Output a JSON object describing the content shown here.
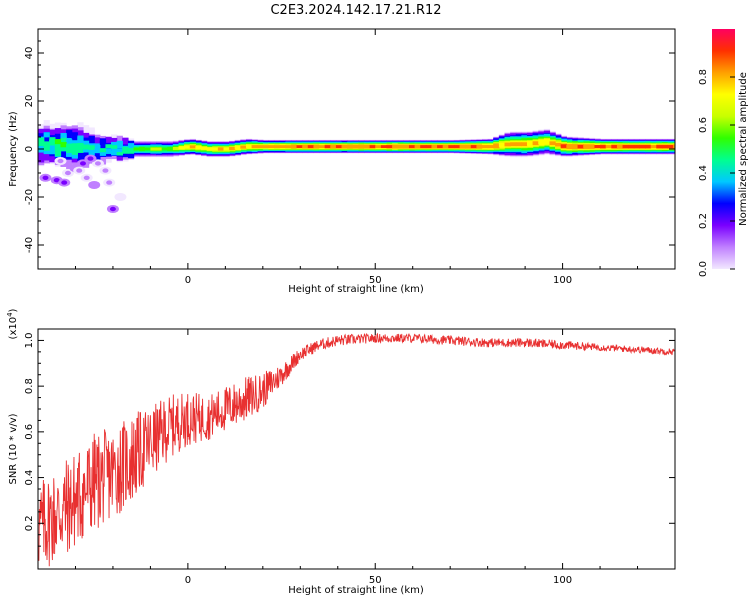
{
  "figure": {
    "title": "C2E3.2024.142.17.21.R12"
  },
  "chart_data": [
    {
      "type": "heatmap",
      "name": "spectrogram",
      "xlabel": "Height of straight line (km)",
      "ylabel": "Frequency (Hz)",
      "xlim": [
        -40,
        130
      ],
      "ylim": [
        -50,
        50
      ],
      "xticks": [
        0,
        50,
        100
      ],
      "yticks": [
        -40,
        -20,
        0,
        20,
        40
      ],
      "colorbar": {
        "label": "Normalized spectral amplitude",
        "range": [
          0,
          1
        ],
        "ticks": [
          "0.0",
          "0.2",
          "0.4",
          "0.6",
          "0.8"
        ],
        "colors": [
          "#f2e8ff",
          "#c080ff",
          "#7a00ff",
          "#0000ff",
          "#00c8ff",
          "#00ff90",
          "#30ff00",
          "#c8ff00",
          "#ffff00",
          "#ffa000",
          "#ff3000",
          "#ff0060"
        ]
      },
      "peak_track": {
        "description_values": "Dominant frequency band near 0 Hz spanning full height range",
        "x": [
          -40,
          -35,
          -30,
          -25,
          -20,
          -15,
          -10,
          -5,
          0,
          5,
          10,
          15,
          20,
          30,
          40,
          50,
          60,
          70,
          80,
          85,
          90,
          95,
          100,
          110,
          120,
          130
        ],
        "freq": [
          2,
          1,
          1,
          0,
          0,
          0,
          0,
          0,
          1,
          0,
          0,
          1,
          1,
          1,
          1,
          1,
          1,
          1,
          1,
          2,
          2,
          3,
          1,
          1,
          1,
          1
        ],
        "amplitude": [
          0.5,
          0.55,
          0.5,
          0.45,
          0.45,
          0.55,
          0.65,
          0.6,
          0.85,
          0.75,
          0.8,
          0.85,
          0.85,
          0.9,
          0.9,
          0.92,
          0.92,
          0.92,
          0.9,
          0.8,
          0.85,
          0.8,
          0.9,
          0.92,
          0.92,
          0.92
        ],
        "halfwidth": [
          8,
          8,
          9,
          6,
          4,
          3,
          3,
          3,
          3,
          3,
          3,
          3,
          2.5,
          2.5,
          2.5,
          2.5,
          2.5,
          2.5,
          3,
          5,
          5,
          5,
          4,
          3,
          3,
          3
        ]
      },
      "scatter_blobs": {
        "x": [
          -38,
          -35,
          -33,
          -32,
          -30,
          -28,
          -27,
          -25,
          -24,
          -22,
          -21,
          -20,
          -18,
          -29,
          -26,
          -34
        ],
        "freq": [
          -12,
          -13,
          -14,
          -10,
          -8,
          -6,
          -12,
          -15,
          -6,
          -9,
          -14,
          -25,
          -20,
          -9,
          -4,
          -5
        ],
        "amplitude": [
          0.25,
          0.2,
          0.22,
          0.15,
          0.18,
          0.2,
          0.15,
          0.18,
          0.12,
          0.15,
          0.15,
          0.2,
          0.08,
          0.15,
          0.2,
          0.1
        ]
      }
    },
    {
      "type": "line",
      "name": "snr",
      "xlabel": "Height of straight line (km)",
      "ylabel": "SNR (10 * v/v)",
      "scale_label": "(x10",
      "scale_exp": "4",
      "scale_close": ")",
      "xlim": [
        -40,
        130
      ],
      "ylim": [
        0,
        1.05
      ],
      "xticks": [
        0,
        50,
        100
      ],
      "yticks": [
        "0.2",
        "0.4",
        "0.6",
        "0.8",
        "1.0"
      ],
      "ytick_values": [
        0.2,
        0.4,
        0.6,
        0.8,
        1.0
      ],
      "line_color": "#e83030",
      "x": [
        -40,
        -35,
        -30,
        -25,
        -20,
        -15,
        -10,
        -5,
        0,
        5,
        10,
        15,
        20,
        25,
        30,
        35,
        40,
        50,
        60,
        70,
        80,
        90,
        100,
        110,
        120,
        130
      ],
      "mean": [
        0.18,
        0.24,
        0.3,
        0.38,
        0.42,
        0.48,
        0.55,
        0.62,
        0.66,
        0.66,
        0.7,
        0.74,
        0.78,
        0.85,
        0.94,
        0.98,
        1.0,
        1.01,
        1.01,
        1.0,
        0.99,
        0.99,
        0.98,
        0.97,
        0.96,
        0.95
      ],
      "spread": [
        0.2,
        0.22,
        0.22,
        0.22,
        0.2,
        0.2,
        0.16,
        0.14,
        0.12,
        0.1,
        0.1,
        0.1,
        0.08,
        0.05,
        0.03,
        0.025,
        0.025,
        0.02,
        0.02,
        0.02,
        0.02,
        0.02,
        0.02,
        0.015,
        0.015,
        0.015
      ]
    }
  ]
}
